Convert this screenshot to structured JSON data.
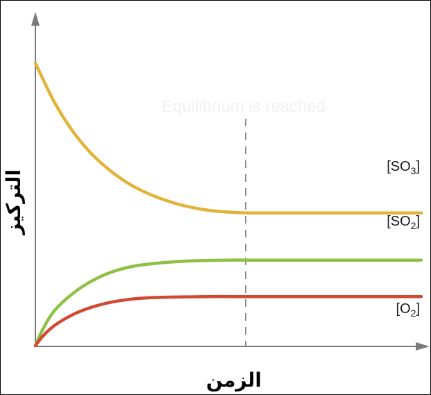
{
  "chart_data": {
    "type": "line",
    "xlabel": "الزمن",
    "ylabel": "التركيز",
    "annotation": "Equilibrium is reached",
    "x_range": [
      0,
      1
    ],
    "y_range": [
      0,
      1
    ],
    "equilibrium_x": 0.545,
    "grid": false,
    "legend": "inline-right",
    "series": [
      {
        "key": "so3",
        "name": "[SO3]",
        "label_main": "[SO",
        "label_sub": "3",
        "label_close": "]",
        "color": "#e2b33a",
        "x": [
          0,
          0.05,
          0.1,
          0.15,
          0.2,
          0.25,
          0.3,
          0.35,
          0.4,
          0.45,
          0.5,
          0.545,
          0.6,
          0.7,
          0.8,
          0.9,
          1.0
        ],
        "y": [
          1.0,
          0.86,
          0.753,
          0.673,
          0.613,
          0.567,
          0.534,
          0.509,
          0.491,
          0.479,
          0.473,
          0.47,
          0.47,
          0.47,
          0.47,
          0.47,
          0.47
        ]
      },
      {
        "key": "so2",
        "name": "[SO2]",
        "label_main": "[SO",
        "label_sub": "2",
        "label_close": "]",
        "color": "#8dc043",
        "x": [
          0,
          0.02,
          0.05,
          0.1,
          0.15,
          0.2,
          0.25,
          0.3,
          0.35,
          0.4,
          0.45,
          0.5,
          0.545,
          0.6,
          0.7,
          0.8,
          0.9,
          1.0
        ],
        "y": [
          0.0,
          0.06,
          0.125,
          0.188,
          0.232,
          0.262,
          0.28,
          0.29,
          0.296,
          0.3,
          0.302,
          0.303,
          0.303,
          0.303,
          0.303,
          0.303,
          0.303,
          0.303
        ]
      },
      {
        "key": "o2",
        "name": "[O2]",
        "label_main": "[O",
        "label_sub": "2",
        "label_close": "]",
        "color": "#cf4a31",
        "x": [
          0,
          0.02,
          0.05,
          0.1,
          0.15,
          0.2,
          0.25,
          0.3,
          0.35,
          0.4,
          0.45,
          0.5,
          0.545,
          0.6,
          0.7,
          0.8,
          0.9,
          1.0
        ],
        "y": [
          0.0,
          0.035,
          0.072,
          0.112,
          0.138,
          0.155,
          0.165,
          0.17,
          0.172,
          0.173,
          0.174,
          0.174,
          0.174,
          0.174,
          0.174,
          0.174,
          0.174,
          0.174
        ]
      }
    ]
  }
}
